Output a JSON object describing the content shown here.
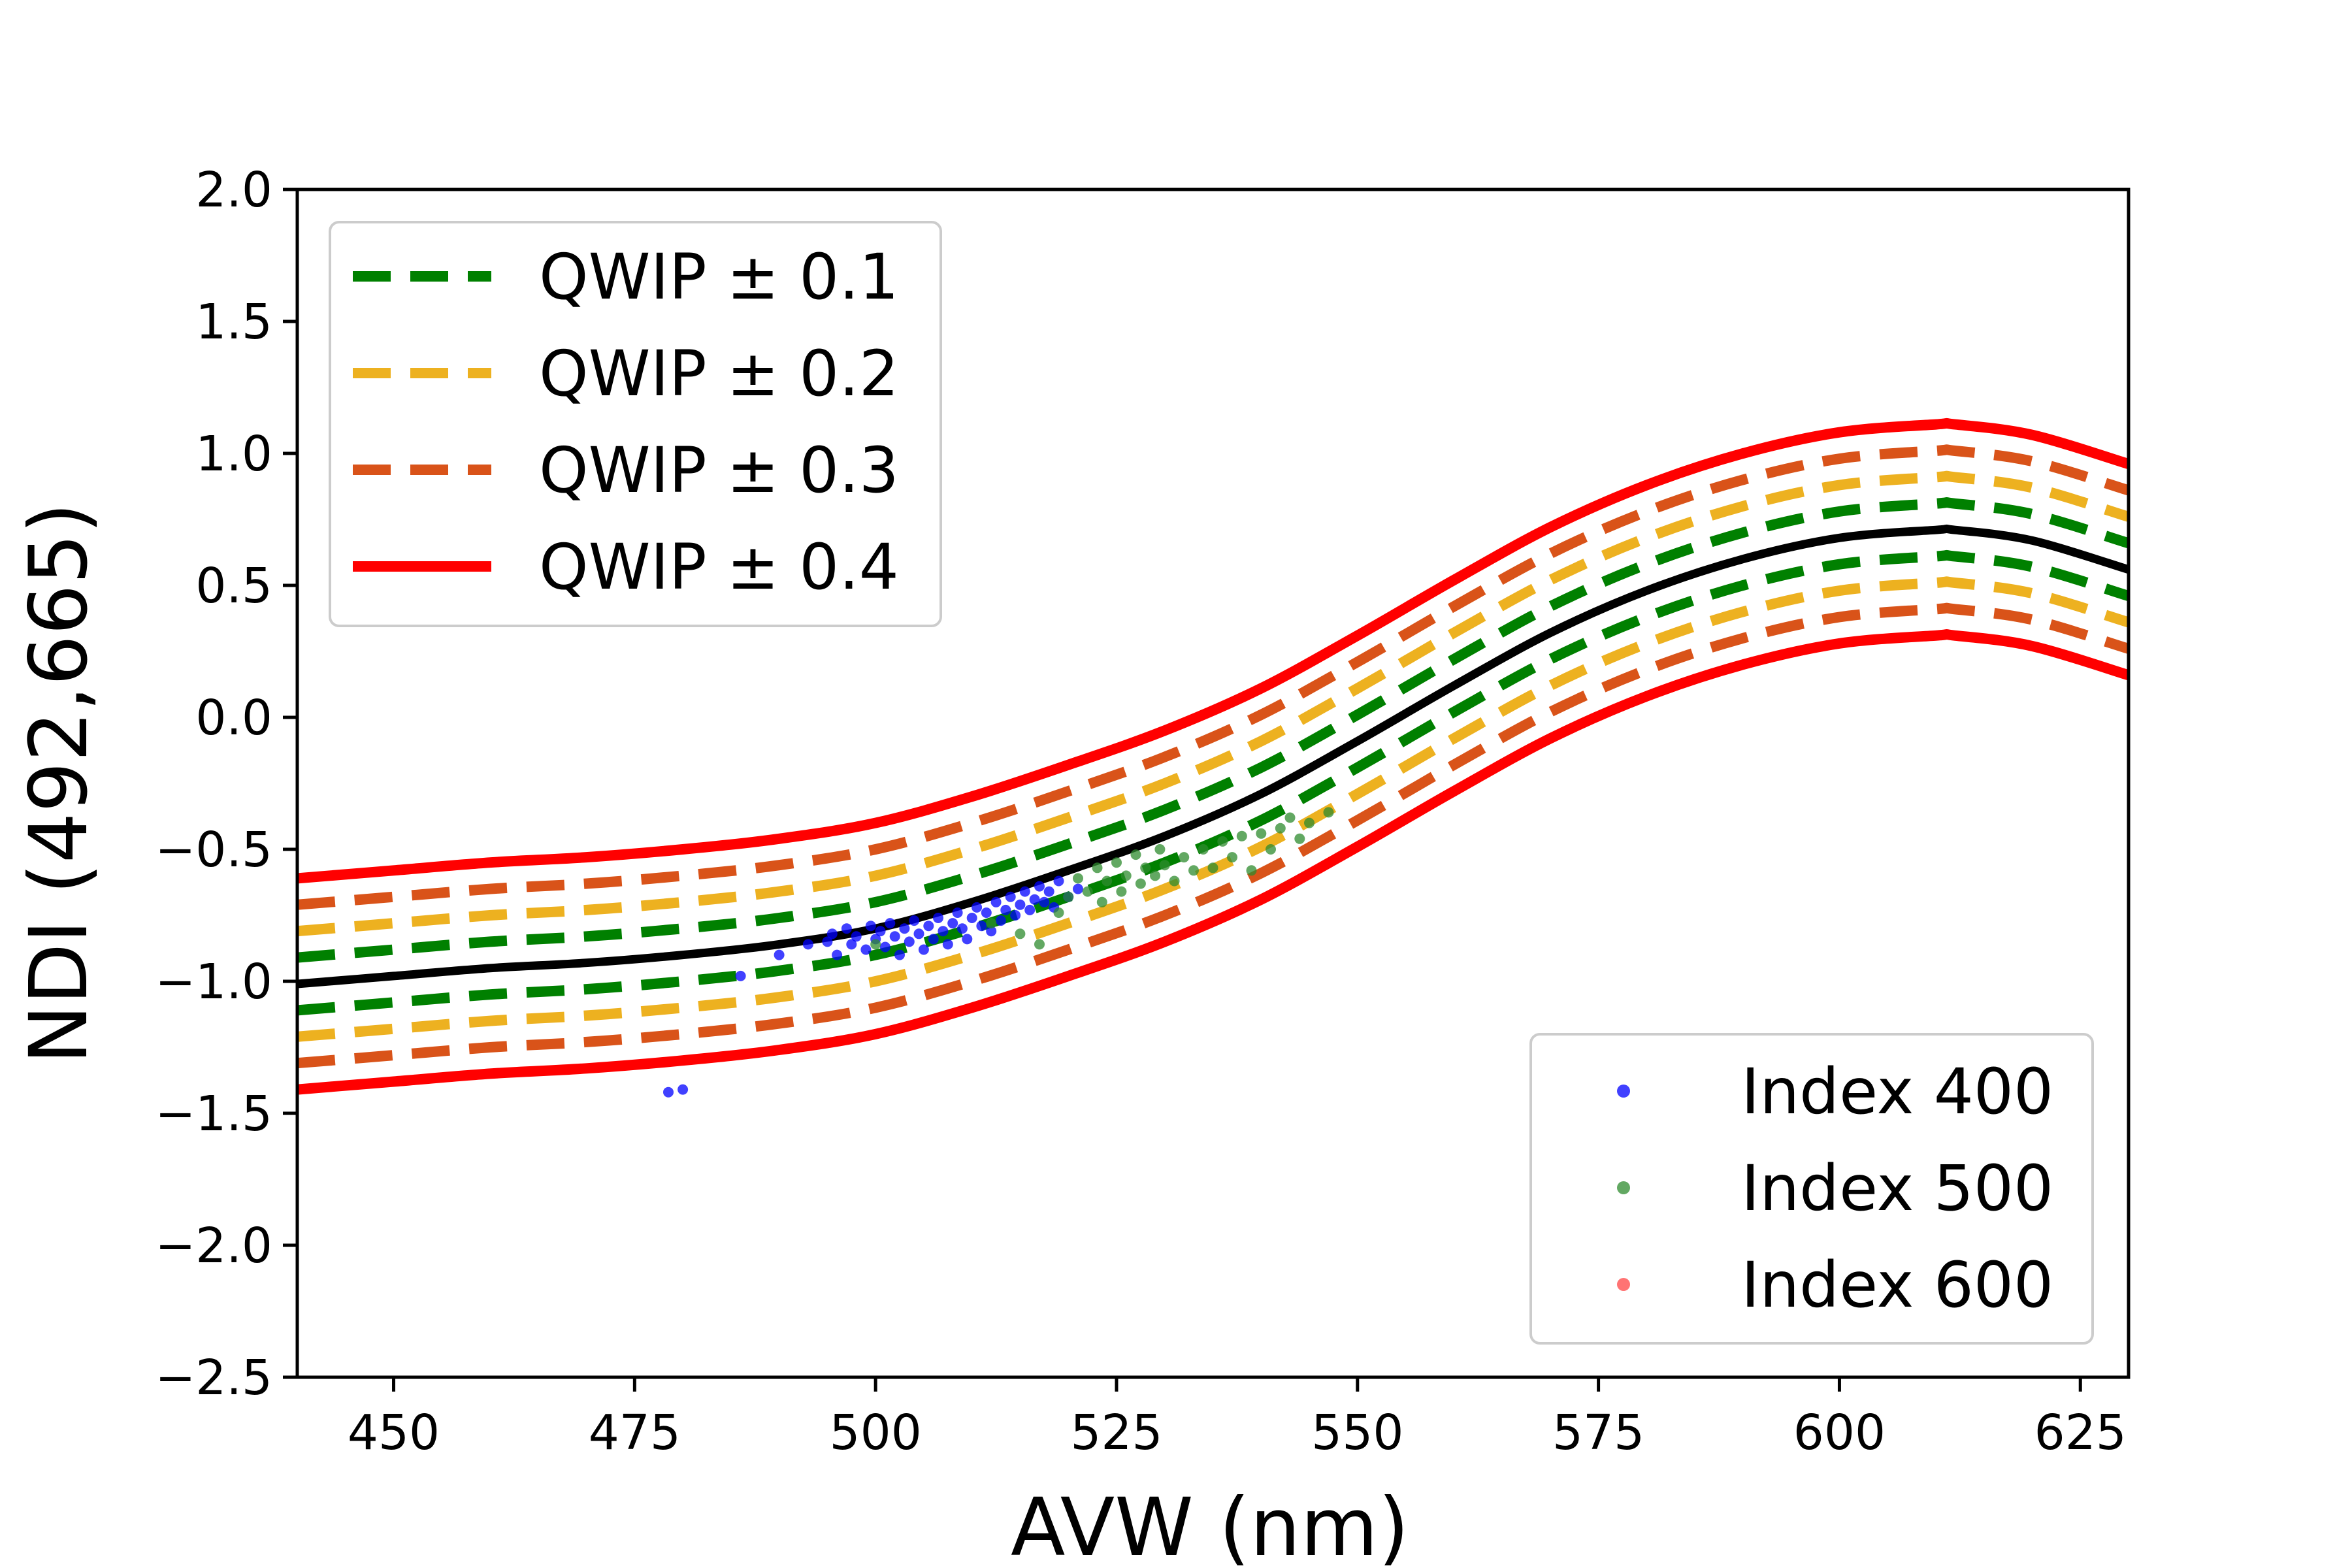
{
  "chart_data": {
    "type": "line",
    "title": "",
    "xlabel": "AVW (nm)",
    "ylabel": "NDI (492,665)",
    "xlim": [
      440,
      630
    ],
    "ylim": [
      -2.5,
      2.0
    ],
    "xticks": [
      450,
      475,
      500,
      525,
      550,
      575,
      600,
      625
    ],
    "xtick_labels": [
      "450",
      "475",
      "500",
      "525",
      "550",
      "575",
      "600",
      "625"
    ],
    "yticks": [
      -2.5,
      -2.0,
      -1.5,
      -1.0,
      -0.5,
      0.0,
      0.5,
      1.0,
      1.5,
      2.0
    ],
    "ytick_labels": [
      "−2.5",
      "−2.0",
      "−1.5",
      "−1.0",
      "−0.5",
      "0.0",
      "0.5",
      "1.0",
      "1.5",
      "2.0"
    ],
    "grid": false,
    "center_curve": {
      "color": "#000000",
      "x": [
        440,
        450,
        460,
        470,
        480,
        490,
        500,
        510,
        520,
        530,
        540,
        550,
        560,
        570,
        580,
        590,
        600,
        610,
        612,
        620,
        630
      ],
      "y": [
        -1.01,
        -0.98,
        -0.95,
        -0.93,
        -0.9,
        -0.86,
        -0.8,
        -0.7,
        -0.58,
        -0.45,
        -0.29,
        -0.09,
        0.12,
        0.32,
        0.48,
        0.6,
        0.68,
        0.71,
        0.71,
        0.67,
        0.56
      ]
    },
    "bands": [
      {
        "name": "QWIP ± 0.1",
        "offset": 0.1,
        "color": "#008000",
        "style": "dashed"
      },
      {
        "name": "QWIP ± 0.2",
        "offset": 0.2,
        "color": "#EDB120",
        "style": "dashed"
      },
      {
        "name": "QWIP ± 0.3",
        "offset": 0.3,
        "color": "#D95319",
        "style": "dashed"
      },
      {
        "name": "QWIP ± 0.4",
        "offset": 0.4,
        "color": "#FF0000",
        "style": "solid"
      }
    ],
    "scatter_series": [
      {
        "name": "Index 400",
        "color": "#0000FF",
        "points": [
          [
            478.5,
            -1.42
          ],
          [
            480,
            -1.41
          ],
          [
            486,
            -0.98
          ],
          [
            490,
            -0.9
          ],
          [
            493,
            -0.86
          ],
          [
            495,
            -0.85
          ],
          [
            495.5,
            -0.82
          ],
          [
            496,
            -0.9
          ],
          [
            497,
            -0.8
          ],
          [
            497.5,
            -0.86
          ],
          [
            498,
            -0.83
          ],
          [
            499,
            -0.88
          ],
          [
            499.5,
            -0.79
          ],
          [
            500,
            -0.84
          ],
          [
            500.5,
            -0.81
          ],
          [
            501,
            -0.87
          ],
          [
            501.5,
            -0.78
          ],
          [
            502,
            -0.83
          ],
          [
            502.5,
            -0.9
          ],
          [
            503,
            -0.8
          ],
          [
            503.5,
            -0.85
          ],
          [
            504,
            -0.77
          ],
          [
            504.5,
            -0.82
          ],
          [
            505,
            -0.88
          ],
          [
            505.5,
            -0.79
          ],
          [
            506,
            -0.84
          ],
          [
            506.5,
            -0.76
          ],
          [
            507,
            -0.81
          ],
          [
            507.5,
            -0.86
          ],
          [
            508,
            -0.78
          ],
          [
            508.5,
            -0.74
          ],
          [
            509,
            -0.8
          ],
          [
            509.5,
            -0.84
          ],
          [
            510,
            -0.76
          ],
          [
            510.5,
            -0.72
          ],
          [
            511,
            -0.79
          ],
          [
            511.5,
            -0.74
          ],
          [
            512,
            -0.81
          ],
          [
            512.5,
            -0.7
          ],
          [
            513,
            -0.77
          ],
          [
            513.5,
            -0.73
          ],
          [
            514,
            -0.68
          ],
          [
            514.5,
            -0.75
          ],
          [
            515,
            -0.71
          ],
          [
            515.5,
            -0.66
          ],
          [
            516,
            -0.73
          ],
          [
            516.5,
            -0.69
          ],
          [
            517,
            -0.64
          ],
          [
            517.5,
            -0.7
          ],
          [
            518,
            -0.66
          ],
          [
            518.5,
            -0.72
          ],
          [
            519,
            -0.62
          ],
          [
            520,
            -0.68
          ],
          [
            521,
            -0.65
          ]
        ]
      },
      {
        "name": "Index 500",
        "color": "#2E8B2E",
        "points": [
          [
            500,
            -0.86
          ],
          [
            512,
            -0.78
          ],
          [
            515,
            -0.82
          ],
          [
            517,
            -0.86
          ],
          [
            519,
            -0.74
          ],
          [
            520,
            -0.68
          ],
          [
            521,
            -0.61
          ],
          [
            522,
            -0.66
          ],
          [
            523,
            -0.57
          ],
          [
            523.5,
            -0.7
          ],
          [
            524,
            -0.62
          ],
          [
            525,
            -0.55
          ],
          [
            525.5,
            -0.66
          ],
          [
            526,
            -0.6
          ],
          [
            527,
            -0.52
          ],
          [
            527.5,
            -0.63
          ],
          [
            528,
            -0.57
          ],
          [
            529,
            -0.6
          ],
          [
            529.5,
            -0.5
          ],
          [
            530,
            -0.56
          ],
          [
            531,
            -0.62
          ],
          [
            532,
            -0.53
          ],
          [
            533,
            -0.58
          ],
          [
            534,
            -0.5
          ],
          [
            535,
            -0.57
          ],
          [
            536,
            -0.47
          ],
          [
            537,
            -0.53
          ],
          [
            538,
            -0.45
          ],
          [
            539,
            -0.58
          ],
          [
            540,
            -0.44
          ],
          [
            541,
            -0.5
          ],
          [
            542,
            -0.42
          ],
          [
            543,
            -0.38
          ],
          [
            544,
            -0.46
          ],
          [
            545,
            -0.4
          ],
          [
            547,
            -0.36
          ]
        ]
      },
      {
        "name": "Index 600",
        "color": "#FF4444",
        "points": []
      }
    ]
  }
}
